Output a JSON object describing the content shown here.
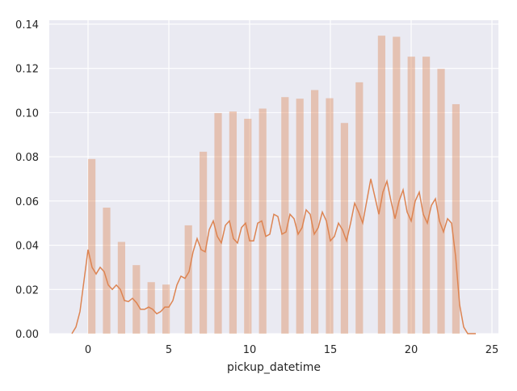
{
  "chart_data": {
    "type": "histogram",
    "xlabel": "pickup_datetime",
    "bins": [
      0,
      0.46,
      0.92,
      1.38,
      1.84,
      2.3,
      2.76,
      3.22,
      3.68,
      4.14,
      4.6,
      5.06,
      5.52,
      5.98,
      6.44,
      6.9,
      7.36,
      7.82,
      8.28,
      8.74,
      9.2,
      9.66,
      10.12,
      10.58,
      11.04,
      11.5,
      11.96,
      12.42,
      12.88,
      13.34,
      13.8,
      14.26,
      14.72,
      15.18,
      15.64,
      16.1,
      16.56,
      17.02,
      17.48,
      17.94,
      18.4,
      18.86,
      19.32,
      19.78,
      20.24,
      20.7,
      21.16,
      21.62,
      22.08,
      22.54,
      23
    ],
    "values": [
      0.079,
      0,
      0.057,
      0,
      0.0415,
      0,
      0.031,
      0,
      0.0233,
      0,
      0.0222,
      0,
      0,
      0.049,
      0,
      0.0823,
      0,
      0.0998,
      0,
      0.1005,
      0,
      0.0972,
      0,
      0.1018,
      0,
      0,
      0.107,
      0,
      0.1063,
      0,
      0.1102,
      0,
      0.1065,
      0,
      0.0953,
      0,
      0.1137,
      0,
      0,
      0.1348,
      0,
      0.1343,
      0,
      0.1253,
      0,
      0.1253,
      0,
      0.1198,
      0,
      0.1038
    ],
    "color": "#dd8452",
    "line": {
      "color": "#dd8452",
      "x": [
        -1,
        -0.75,
        -0.5,
        -0.25,
        0,
        0.25,
        0.5,
        0.75,
        1,
        1.25,
        1.5,
        1.75,
        2,
        2.25,
        2.5,
        2.75,
        3,
        3.25,
        3.5,
        3.75,
        4,
        4.25,
        4.5,
        4.75,
        5,
        5.25,
        5.5,
        5.75,
        6,
        6.25,
        6.5,
        6.75,
        7,
        7.25,
        7.5,
        7.75,
        8,
        8.25,
        8.5,
        8.75,
        9,
        9.25,
        9.5,
        9.75,
        10,
        10.25,
        10.5,
        10.75,
        11,
        11.25,
        11.5,
        11.75,
        12,
        12.25,
        12.5,
        12.75,
        13,
        13.25,
        13.5,
        13.75,
        14,
        14.25,
        14.5,
        14.75,
        15,
        15.25,
        15.5,
        15.75,
        16,
        16.25,
        16.5,
        16.75,
        17,
        17.25,
        17.5,
        17.75,
        18,
        18.25,
        18.5,
        18.75,
        19,
        19.25,
        19.5,
        19.75,
        20,
        20.25,
        20.5,
        20.75,
        21,
        21.25,
        21.5,
        21.75,
        22,
        22.25,
        22.5,
        22.75,
        23,
        23.25,
        23.5,
        23.75,
        24
      ],
      "values": [
        0,
        0.003,
        0.01,
        0.024,
        0.038,
        0.03,
        0.027,
        0.03,
        0.028,
        0.022,
        0.02,
        0.022,
        0.02,
        0.015,
        0.0145,
        0.016,
        0.014,
        0.011,
        0.011,
        0.012,
        0.011,
        0.009,
        0.01,
        0.012,
        0.012,
        0.015,
        0.022,
        0.026,
        0.025,
        0.028,
        0.037,
        0.043,
        0.038,
        0.037,
        0.047,
        0.051,
        0.044,
        0.041,
        0.049,
        0.051,
        0.043,
        0.041,
        0.048,
        0.05,
        0.042,
        0.042,
        0.05,
        0.051,
        0.044,
        0.045,
        0.054,
        0.053,
        0.045,
        0.046,
        0.054,
        0.052,
        0.045,
        0.048,
        0.056,
        0.054,
        0.045,
        0.048,
        0.055,
        0.051,
        0.042,
        0.044,
        0.05,
        0.047,
        0.042,
        0.05,
        0.059,
        0.055,
        0.05,
        0.06,
        0.07,
        0.062,
        0.054,
        0.064,
        0.069,
        0.06,
        0.052,
        0.06,
        0.065,
        0.055,
        0.051,
        0.06,
        0.064,
        0.054,
        0.05,
        0.058,
        0.061,
        0.051,
        0.046,
        0.052,
        0.05,
        0.035,
        0.013,
        0.003,
        0,
        0,
        0
      ]
    },
    "xlim": [
      -2.4,
      25.4
    ],
    "ylim": [
      0,
      0.1418
    ],
    "xticks": [
      0,
      5,
      10,
      15,
      20,
      25
    ],
    "yticks": [
      {
        "value": 0,
        "label": "0.00"
      },
      {
        "value": 0.02,
        "label": "0.02"
      },
      {
        "value": 0.04,
        "label": "0.04"
      },
      {
        "value": 0.06,
        "label": "0.06"
      },
      {
        "value": 0.08,
        "label": "0.08"
      },
      {
        "value": 0.1,
        "label": "0.10"
      },
      {
        "value": 0.12,
        "label": "0.12"
      },
      {
        "value": 0.14,
        "label": "0.14"
      }
    ],
    "grid": true
  }
}
